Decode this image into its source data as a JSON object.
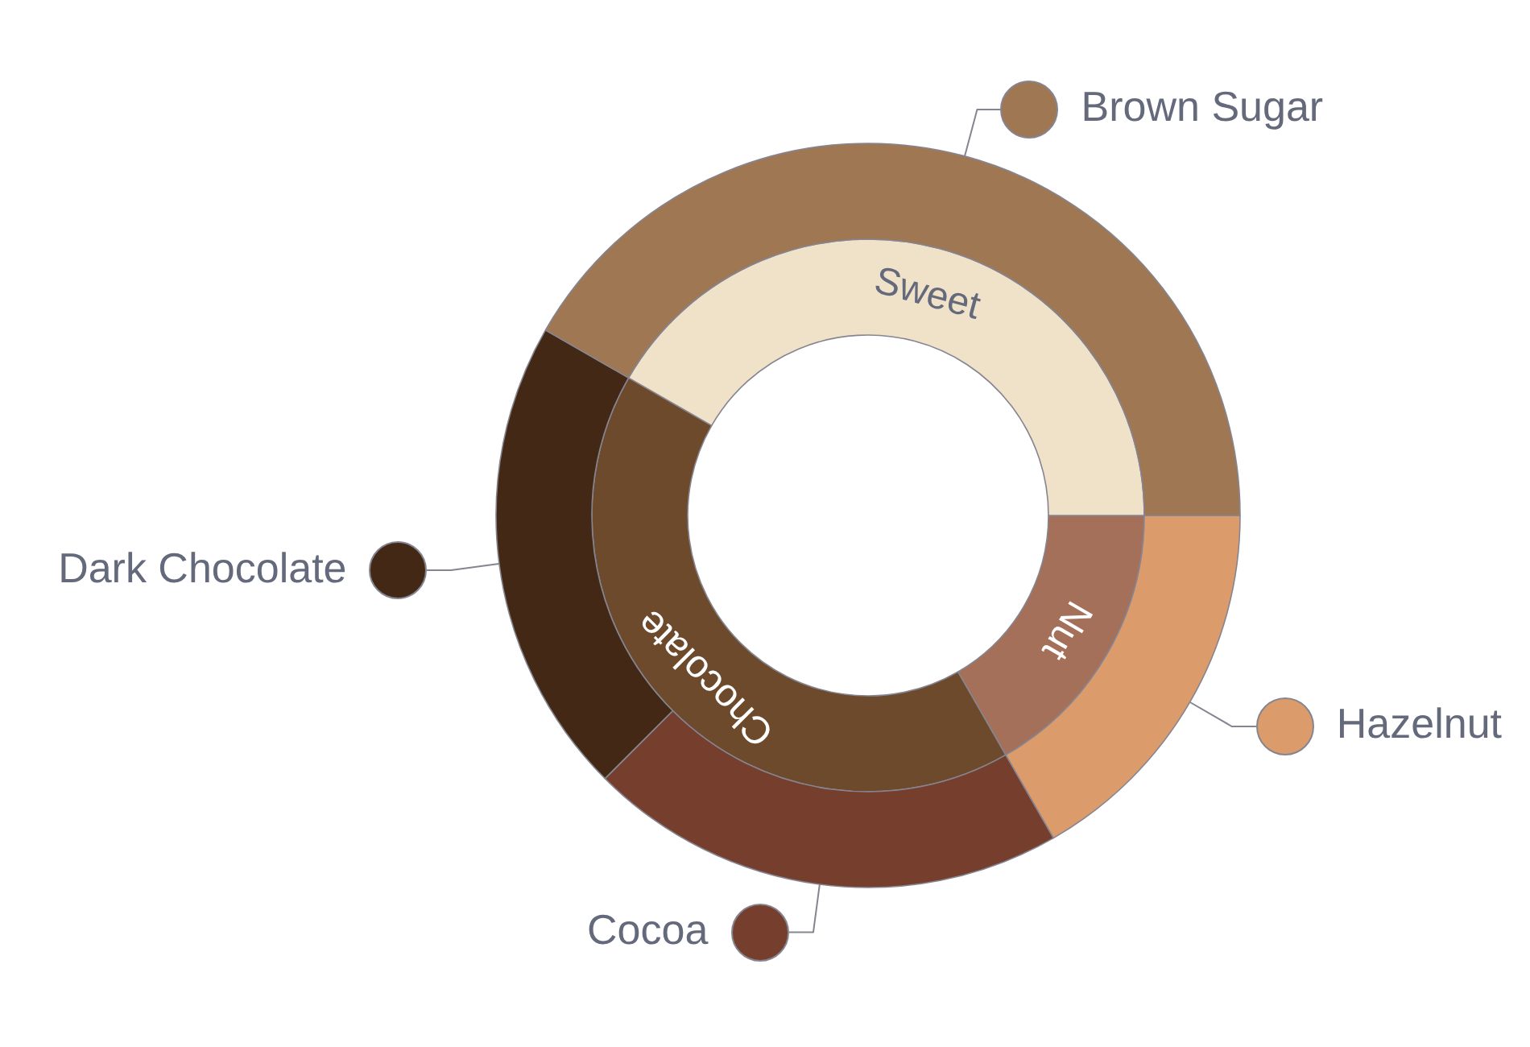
{
  "chart_data": [
    {
      "type": "donut",
      "categories": [
        "Nut",
        "Chocolate",
        "Sweet"
      ],
      "values": [
        16.7,
        41.6,
        41.7
      ],
      "colors": [
        "#a5705a",
        "#6e4a2c",
        "#f0e2c8"
      ]
    },
    {
      "type": "donut",
      "categories": [
        "Hazelnut",
        "Cocoa",
        "Dark Chocolate",
        "Brown Sugar"
      ],
      "values": [
        16.7,
        20.8,
        20.8,
        41.7
      ],
      "colors": [
        "#dc9b6a",
        "#763e2c",
        "#432915",
        "#a07753"
      ],
      "legend": "right"
    }
  ]
}
